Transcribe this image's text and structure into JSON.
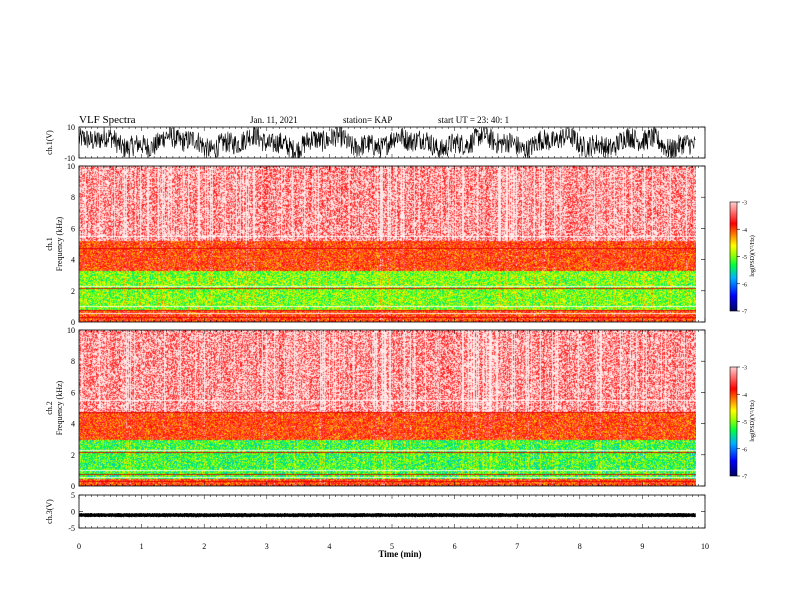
{
  "header": {
    "title": "VLF Spectra",
    "date": "Jan. 11, 2021",
    "station": "station= KAP",
    "start": "start UT = 23: 40: 1"
  },
  "chart_data": [
    {
      "type": "line",
      "panel": "ch1-waveform",
      "ylabel": "ch.1(V)",
      "ylim": [
        -10,
        10
      ],
      "yticks": [
        "10",
        "-10"
      ],
      "x_range": [
        0,
        9.85
      ],
      "color": "#000000"
    },
    {
      "type": "heatmap",
      "panel": "ch1-spectrogram",
      "ylabel": "ch.1\nFrequency (kHz)",
      "ylim": [
        0,
        10
      ],
      "yticks": [
        "0",
        "2",
        "4",
        "6",
        "8",
        "10"
      ],
      "x_range": [
        0,
        9.85
      ],
      "colorbar": {
        "label": "log(PSD)(V²/Hz)",
        "range": [
          -7,
          -3
        ],
        "ticks": [
          "-3",
          "-4",
          "-5",
          "-6",
          "-7"
        ],
        "colors": [
          "#000080",
          "#0000ff",
          "#00a0ff",
          "#00ff40",
          "#a0ff00",
          "#ffff00",
          "#ff8000",
          "#ff0000",
          "#ffffff"
        ]
      },
      "bands": [
        {
          "f": [
            0,
            0.8
          ],
          "log_psd": -3.9
        },
        {
          "f": [
            0.8,
            3.3
          ],
          "log_psd": -5.0
        },
        {
          "f": [
            3.3,
            5.2
          ],
          "log_psd": -3.9
        },
        {
          "f": [
            5.2,
            10
          ],
          "log_psd": -3.2
        }
      ]
    },
    {
      "type": "heatmap",
      "panel": "ch2-spectrogram",
      "ylabel": "ch.2\nFrequency (kHz)",
      "ylim": [
        0,
        10
      ],
      "yticks": [
        "0",
        "2",
        "4",
        "6",
        "8",
        "10"
      ],
      "x_range": [
        0,
        9.85
      ],
      "colorbar": {
        "label": "log(PSD)(V²/Hz)",
        "range": [
          -7,
          -3
        ],
        "ticks": [
          "-3",
          "-4",
          "-5",
          "-6",
          "-7"
        ]
      },
      "bands": [
        {
          "f": [
            0,
            0.5
          ],
          "log_psd": -3.9
        },
        {
          "f": [
            0.5,
            3.0
          ],
          "log_psd": -5.2
        },
        {
          "f": [
            3.0,
            4.8
          ],
          "log_psd": -3.9
        },
        {
          "f": [
            4.8,
            10
          ],
          "log_psd": -3.2
        }
      ]
    },
    {
      "type": "line",
      "panel": "ch3-waveform",
      "ylabel": "ch.3(V)",
      "ylim": [
        -5,
        5
      ],
      "yticks": [
        "5",
        "0",
        "-5"
      ],
      "x_range": [
        0,
        9.85
      ],
      "color": "#000000"
    }
  ],
  "xaxis": {
    "label": "Time (min)",
    "ticks": [
      "0",
      "1",
      "2",
      "3",
      "4",
      "5",
      "6",
      "7",
      "8",
      "9",
      "10"
    ],
    "xlim": [
      0,
      10
    ]
  }
}
